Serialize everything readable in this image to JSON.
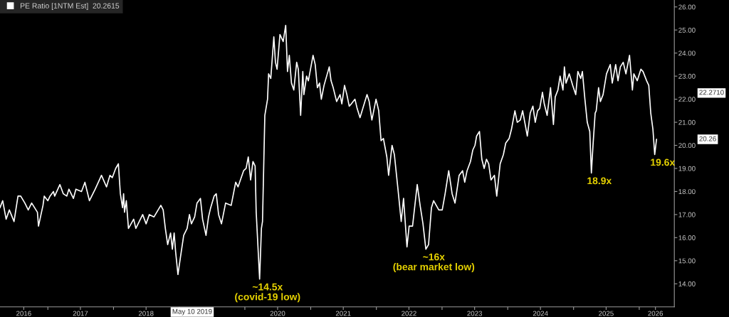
{
  "chart_data": {
    "type": "line",
    "legend": "top left",
    "grid": false,
    "marker": "none",
    "line_style": "solid",
    "xlim": [
      "2016-04-10",
      "2026-07-15"
    ],
    "xticks": [
      {
        "value": "2016-08-20",
        "label": "2016"
      },
      {
        "value": "2017-01-01",
        "label": null
      },
      {
        "value": "2017-07-01",
        "label": "2017"
      },
      {
        "value": "2018-01-01",
        "label": null
      },
      {
        "value": "2018-07-01",
        "label": "2018"
      },
      {
        "value": "2019-01-01",
        "label": null
      },
      {
        "value": "2020-01-01",
        "label": null
      },
      {
        "value": "2020-07-01",
        "label": "2020"
      },
      {
        "value": "2021-01-01",
        "label": null
      },
      {
        "value": "2021-07-01",
        "label": "2021"
      },
      {
        "value": "2022-01-01",
        "label": null
      },
      {
        "value": "2022-07-01",
        "label": "2022"
      },
      {
        "value": "2023-01-01",
        "label": null
      },
      {
        "value": "2023-07-01",
        "label": "2023"
      },
      {
        "value": "2024-01-01",
        "label": null
      },
      {
        "value": "2024-07-01",
        "label": "2024"
      },
      {
        "value": "2025-01-01",
        "label": null
      },
      {
        "value": "2025-07-01",
        "label": "2025"
      },
      {
        "value": "2026-01-01",
        "label": null
      },
      {
        "value": "2026-04-01",
        "label": "2026"
      }
    ],
    "ylim": [
      13.0,
      26.3
    ],
    "yticks": [
      {
        "value": 14,
        "label": "14.00"
      },
      {
        "value": 15,
        "label": "15.00"
      },
      {
        "value": 16,
        "label": "16.00"
      },
      {
        "value": 17,
        "label": "17.00"
      },
      {
        "value": 18,
        "label": "18.00"
      },
      {
        "value": 19,
        "label": "19.00"
      },
      {
        "value": 20,
        "label": "20.00"
      },
      {
        "value": 21,
        "label": "21.00"
      },
      {
        "value": 22,
        "label": "22.00"
      },
      {
        "value": 23,
        "label": "23.00"
      },
      {
        "value": 24,
        "label": "24.00"
      },
      {
        "value": 25,
        "label": "25.00"
      },
      {
        "value": 26,
        "label": "26.00"
      }
    ],
    "annotations": [
      {
        "text": "~14.5x\n(covid-19 low)",
        "x": "2020-03-23",
        "y": 14.2
      },
      {
        "text": "~16x\n(bear market low)",
        "x": "2022-10-03",
        "y": 15.5
      },
      {
        "text": "18.9x",
        "x": "2025-04-10",
        "y": 18.8
      },
      {
        "text": "19.6x",
        "x": "2026-03-28",
        "y": 19.6
      },
      "22.2710",
      "20.26",
      "May 10 2019"
    ],
    "series": [
      {
        "name": "PE Ratio [1NTM Est]  20.2615",
        "color": "#ffffff",
        "x": [
          "2016-04-10",
          "2016-04-25",
          "2016-05-14",
          "2016-06-01",
          "2016-06-27",
          "2016-07-19",
          "2016-08-03",
          "2016-08-26",
          "2016-09-14",
          "2016-10-03",
          "2016-11-04",
          "2016-11-10",
          "2016-12-05",
          "2016-12-12",
          "2017-01-01",
          "2017-01-13",
          "2017-02-01",
          "2017-02-08",
          "2017-03-09",
          "2017-03-28",
          "2017-04-16",
          "2017-04-28",
          "2017-05-23",
          "2017-06-06",
          "2017-07-07",
          "2017-07-26",
          "2017-08-20",
          "2017-09-21",
          "2017-10-26",
          "2017-11-23",
          "2017-12-12",
          "2017-12-25",
          "2018-01-13",
          "2018-01-28",
          "2018-02-08",
          "2018-02-20",
          "2018-02-26",
          "2018-03-03",
          "2018-03-13",
          "2018-03-25",
          "2018-04-23",
          "2018-05-05",
          "2018-06-12",
          "2018-07-01",
          "2018-07-19",
          "2018-08-14",
          "2018-09-21",
          "2018-10-04",
          "2018-10-16",
          "2018-10-29",
          "2018-11-14",
          "2018-11-24",
          "2018-12-04",
          "2018-12-12",
          "2018-12-25",
          "2019-01-07",
          "2019-01-26",
          "2019-02-14",
          "2019-02-27",
          "2019-03-10",
          "2019-03-28",
          "2019-04-10",
          "2019-04-29",
          "2019-05-11",
          "2019-05-30",
          "2019-06-13",
          "2019-06-25",
          "2019-07-14",
          "2019-07-26",
          "2019-08-08",
          "2019-08-24",
          "2019-09-16",
          "2019-10-17",
          "2019-11-11",
          "2019-11-24",
          "2019-12-25",
          "2020-01-08",
          "2020-01-20",
          "2020-02-02",
          "2020-02-15",
          "2020-02-27",
          "2020-03-04",
          "2020-03-23",
          "2020-04-02",
          "2020-04-08",
          "2020-04-21",
          "2020-05-06",
          "2020-05-12",
          "2020-05-24",
          "2020-06-10",
          "2020-06-19",
          "2020-06-28",
          "2020-07-14",
          "2020-08-01",
          "2020-08-15",
          "2020-08-25",
          "2020-09-04",
          "2020-09-16",
          "2020-09-29",
          "2020-10-15",
          "2020-10-24",
          "2020-11-06",
          "2020-11-18",
          "2020-11-24",
          "2020-12-09",
          "2020-12-19",
          "2021-01-14",
          "2021-01-26",
          "2021-02-07",
          "2021-02-19",
          "2021-03-01",
          "2021-03-16",
          "2021-04-14",
          "2021-04-24",
          "2021-05-06",
          "2021-05-25",
          "2021-06-13",
          "2021-06-23",
          "2021-07-08",
          "2021-07-21",
          "2021-08-03",
          "2021-08-15",
          "2021-09-04",
          "2021-09-16",
          "2021-10-02",
          "2021-11-10",
          "2021-11-22",
          "2021-12-07",
          "2021-12-30",
          "2022-01-14",
          "2022-01-27",
          "2022-02-09",
          "2022-02-28",
          "2022-03-10",
          "2022-03-29",
          "2022-04-11",
          "2022-05-01",
          "2022-05-19",
          "2022-06-01",
          "2022-06-20",
          "2022-07-02",
          "2022-07-21",
          "2022-08-16",
          "2022-09-01",
          "2022-09-17",
          "2022-10-03",
          "2022-10-18",
          "2022-11-03",
          "2022-11-15",
          "2022-12-14",
          "2023-01-02",
          "2023-01-18",
          "2023-02-07",
          "2023-02-26",
          "2023-03-14",
          "2023-04-06",
          "2023-04-25",
          "2023-05-07",
          "2023-05-20",
          "2023-06-08",
          "2023-06-21",
          "2023-07-03",
          "2023-07-12",
          "2023-07-28",
          "2023-08-10",
          "2023-08-23",
          "2023-09-05",
          "2023-09-17",
          "2023-09-30",
          "2023-10-19",
          "2023-11-01",
          "2023-11-20",
          "2023-12-08",
          "2023-12-21",
          "2024-01-09",
          "2024-01-22",
          "2024-02-10",
          "2024-02-23",
          "2024-03-11",
          "2024-03-24",
          "2024-04-19",
          "2024-05-05",
          "2024-05-20",
          "2024-06-02",
          "2024-06-15",
          "2024-06-27",
          "2024-07-12",
          "2024-07-22",
          "2024-08-07",
          "2024-08-26",
          "2024-09-11",
          "2024-09-21",
          "2024-10-06",
          "2024-10-18",
          "2024-11-03",
          "2024-11-11",
          "2024-11-20",
          "2024-12-08",
          "2024-12-27",
          "2025-01-13",
          "2025-01-25",
          "2025-02-10",
          "2025-02-19",
          "2025-03-05",
          "2025-03-18",
          "2025-04-01",
          "2025-04-10",
          "2025-04-19",
          "2025-05-01",
          "2025-05-07",
          "2025-05-20",
          "2025-05-30",
          "2025-06-14",
          "2025-07-03",
          "2025-07-24",
          "2025-08-04",
          "2025-08-23",
          "2025-09-05",
          "2025-09-18",
          "2025-10-04",
          "2025-10-19",
          "2025-11-08",
          "2025-11-24",
          "2025-12-02",
          "2025-12-21",
          "2026-01-10",
          "2026-01-22",
          "2026-02-11",
          "2026-02-23",
          "2026-03-06",
          "2026-03-18",
          "2026-03-28",
          "2026-04-07"
        ],
        "values": [
          17.3,
          17.6,
          16.8,
          17.2,
          16.7,
          17.8,
          17.8,
          17.5,
          17.2,
          17.5,
          17.1,
          16.5,
          17.4,
          17.8,
          17.6,
          17.8,
          18.0,
          17.8,
          18.3,
          17.9,
          17.8,
          18.1,
          17.7,
          18.1,
          18.0,
          18.4,
          17.6,
          18.1,
          18.7,
          18.2,
          18.7,
          18.6,
          19.0,
          19.2,
          17.9,
          17.3,
          17.9,
          17.1,
          17.6,
          16.4,
          16.8,
          16.4,
          17.0,
          16.6,
          17.0,
          16.9,
          17.4,
          17.2,
          16.4,
          15.7,
          16.2,
          15.5,
          16.2,
          15.4,
          14.4,
          15.1,
          16.1,
          16.4,
          17.0,
          16.6,
          16.9,
          17.5,
          17.7,
          16.8,
          16.1,
          16.9,
          17.3,
          17.8,
          17.9,
          17.0,
          16.6,
          17.5,
          17.4,
          18.4,
          18.2,
          18.9,
          19.0,
          19.5,
          18.5,
          19.3,
          19.1,
          17.1,
          14.2,
          16.4,
          16.7,
          21.3,
          22.0,
          23.1,
          22.9,
          24.7,
          23.6,
          23.3,
          24.8,
          24.5,
          25.2,
          23.2,
          23.9,
          22.7,
          22.4,
          23.6,
          23.3,
          21.3,
          23.2,
          22.2,
          23.0,
          22.8,
          23.9,
          23.5,
          22.5,
          22.7,
          22.0,
          22.6,
          23.4,
          22.8,
          22.5,
          21.9,
          22.2,
          21.8,
          22.6,
          22.2,
          21.7,
          21.8,
          22.0,
          21.6,
          21.2,
          22.2,
          21.9,
          21.1,
          22.0,
          21.5,
          20.2,
          20.3,
          19.5,
          18.7,
          20.0,
          19.6,
          18.1,
          16.7,
          17.7,
          15.6,
          16.5,
          16.5,
          18.3,
          17.4,
          16.6,
          15.5,
          15.7,
          17.3,
          17.6,
          17.2,
          17.2,
          17.9,
          18.9,
          17.9,
          17.5,
          18.7,
          18.9,
          18.4,
          18.9,
          19.3,
          19.8,
          20.0,
          20.4,
          20.6,
          19.4,
          19.0,
          19.4,
          19.2,
          18.5,
          18.7,
          17.8,
          19.2,
          19.6,
          20.1,
          20.3,
          20.7,
          21.5,
          21.0,
          21.1,
          21.5,
          20.4,
          21.4,
          21.7,
          21.0,
          21.5,
          21.6,
          22.3,
          21.8,
          21.3,
          22.5,
          20.9,
          22.1,
          22.4,
          23.0,
          22.4,
          23.4,
          22.7,
          23.1,
          22.6,
          22.2,
          23.2,
          22.9,
          23.2,
          22.0,
          21.0,
          20.6,
          18.8,
          20.0,
          21.4,
          21.5,
          22.5,
          21.9,
          22.2,
          23.1,
          23.5,
          22.7,
          23.5,
          22.8,
          23.4,
          23.6,
          23.1,
          23.9,
          22.4,
          23.1,
          22.8,
          23.3,
          23.2,
          22.8,
          22.6,
          21.4,
          20.7,
          19.6,
          20.26
        ]
      }
    ]
  }
}
